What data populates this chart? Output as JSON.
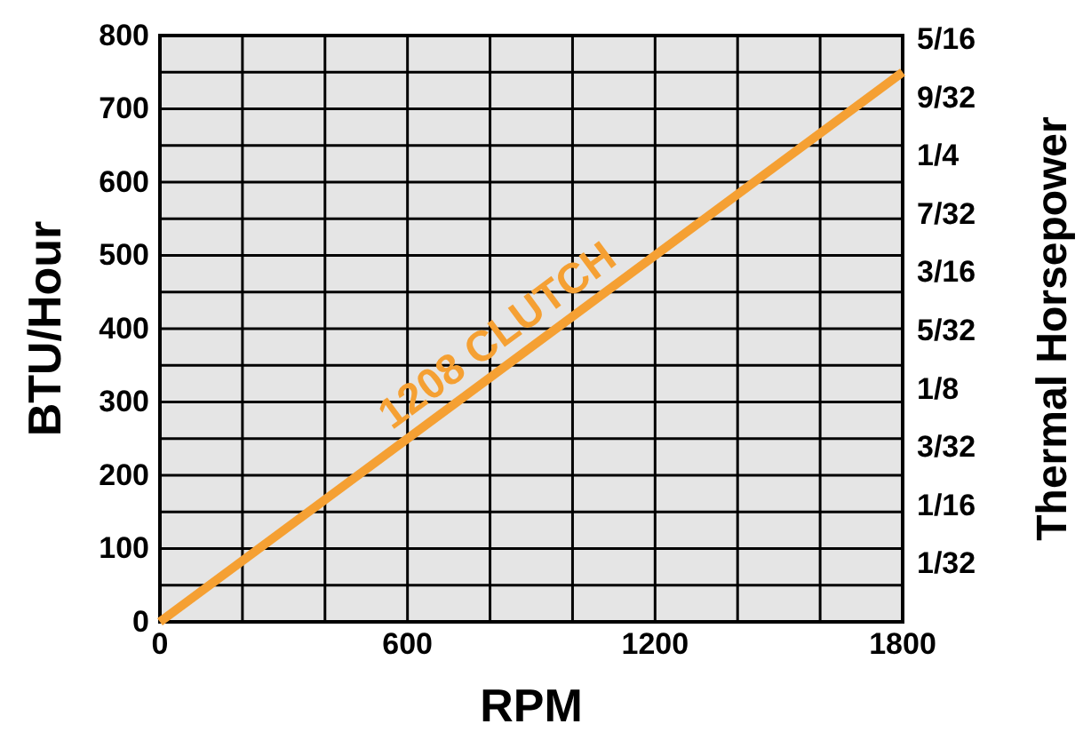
{
  "chart_data": {
    "type": "line",
    "xlabel": "RPM",
    "ylabel": "BTU/Hour",
    "y2label": "Thermal Horsepower",
    "x": [
      0,
      1800
    ],
    "series": [
      {
        "color": "#f5a033",
        "values": [
          0,
          750
        ]
      }
    ],
    "xlim": [
      0,
      1800
    ],
    "ylim": [
      0,
      800
    ],
    "xticks": [
      0,
      {
        "value": 200,
        "label": null
      },
      {
        "value": 400,
        "label": null
      },
      600,
      {
        "value": 800,
        "label": null
      },
      {
        "value": 1000,
        "label": null
      },
      1200,
      {
        "value": 1400,
        "label": null
      },
      {
        "value": 1600,
        "label": null
      },
      1800
    ],
    "yticks": [
      0,
      {
        "value": 50,
        "label": null
      },
      100,
      {
        "value": 150,
        "label": null
      },
      200,
      {
        "value": 250,
        "label": null
      },
      300,
      {
        "value": 350,
        "label": null
      },
      400,
      {
        "value": 450,
        "label": null
      },
      500,
      {
        "value": 550,
        "label": null
      },
      600,
      {
        "value": 650,
        "label": null
      },
      700,
      {
        "value": 750,
        "label": null
      },
      800
    ],
    "y2lim": [
      0,
      0.3145
    ],
    "y2ticks": [
      {
        "value": 0.03125,
        "label": "1/32"
      },
      {
        "value": 0.0625,
        "label": "1/16"
      },
      {
        "value": 0.09375,
        "label": "3/32"
      },
      {
        "value": 0.125,
        "label": "1/8"
      },
      {
        "value": 0.15625,
        "label": "5/32"
      },
      {
        "value": 0.1875,
        "label": "3/16"
      },
      {
        "value": 0.21875,
        "label": "7/32"
      },
      {
        "value": 0.25,
        "label": "1/4"
      },
      {
        "value": 0.28125,
        "label": "9/32"
      },
      {
        "value": 0.3125,
        "label": "5/16"
      }
    ],
    "annotations": [
      {
        "text": "1208 CLUTCH",
        "x": 860,
        "y": 358
      }
    ],
    "grid": true,
    "marker": "none",
    "line_style": "solid"
  }
}
